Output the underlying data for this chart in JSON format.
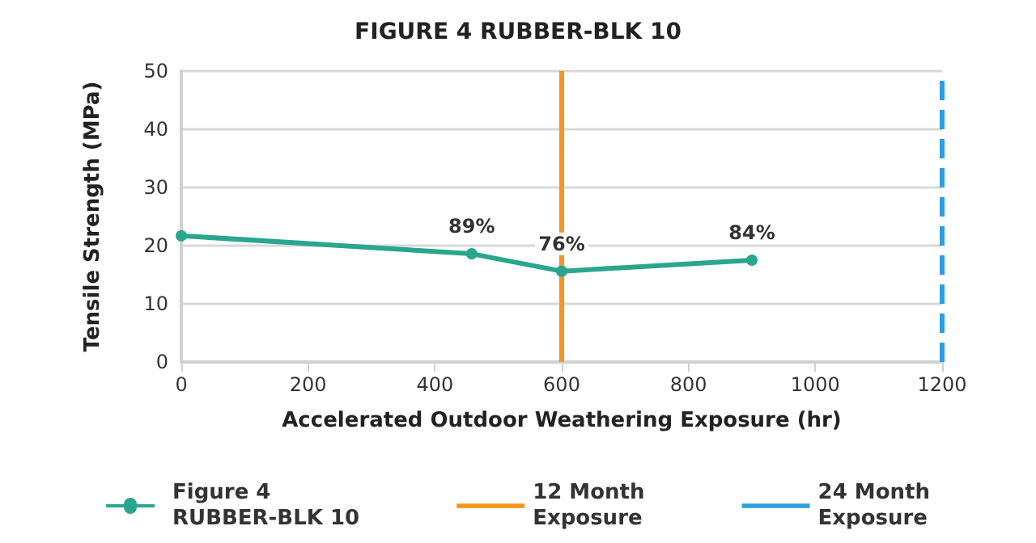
{
  "chart_data": {
    "type": "line",
    "title": "FIGURE 4 RUBBER-BLK 10",
    "xlabel": "Accelerated Outdoor Weathering Exposure (hr)",
    "ylabel": "Tensile Strength (MPa)",
    "x": [
      0,
      458,
      600,
      900
    ],
    "series": [
      {
        "name": "Figure 4\nRUBBER-BLK 10",
        "color": "#2aa58e",
        "values": [
          21.7,
          18.6,
          15.6,
          17.5
        ]
      }
    ],
    "annotations": [
      {
        "text": "89%",
        "x": 458,
        "y": 18.6
      },
      {
        "text": "76%",
        "x": 600,
        "y": 15.6
      },
      {
        "text": "84%",
        "x": 900,
        "y": 17.5
      }
    ],
    "ref_lines": [
      {
        "axis": "x",
        "value": 600,
        "label": "12 Month\nExposure",
        "color": "#f7941d",
        "line_style": "solid"
      },
      {
        "axis": "x",
        "value": 1200,
        "label": "24 Month\nExposure",
        "color": "#2b9fe0",
        "line_style": "dashed"
      }
    ],
    "xlim": [
      0,
      1200
    ],
    "xticks": [
      0,
      200,
      400,
      600,
      800,
      1000,
      1200
    ],
    "ylim": [
      0,
      50
    ],
    "yticks": [
      0,
      10,
      20,
      30,
      40,
      50
    ],
    "grid": "y",
    "legend": "bottom",
    "marker": "circle",
    "line_style": "solid"
  }
}
